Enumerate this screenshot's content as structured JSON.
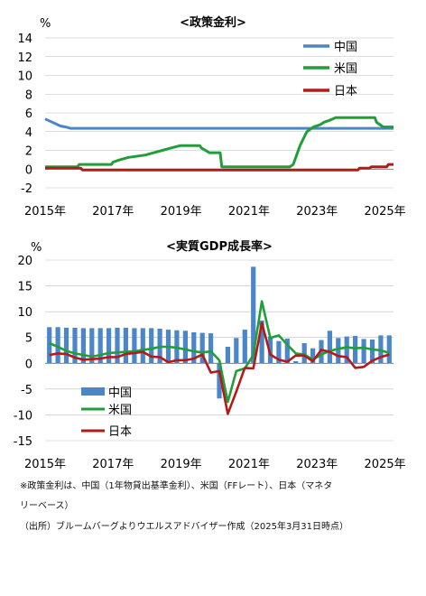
{
  "colors": {
    "china": "#4a86c8",
    "us": "#1f9e3a",
    "japan": "#b31b1b",
    "grid": "#bdbdbd"
  },
  "chart_data": [
    {
      "type": "line",
      "title": "<政策金利>",
      "ylabel": "%",
      "ylim": [
        -2,
        14
      ],
      "yticks": [
        "14",
        "12",
        "10",
        "8",
        "6",
        "4",
        "2",
        "0",
        "-2"
      ],
      "yticks_values": [
        14,
        12,
        10,
        8,
        6,
        4,
        2,
        0,
        -2
      ],
      "xticks": [
        "2015年",
        "2017年",
        "2019年",
        "2021年",
        "2023年",
        "2025年"
      ],
      "xticks_values": [
        2015,
        2017,
        2019,
        2021,
        2023,
        2025
      ],
      "legend": {
        "position": "top-right"
      },
      "series": [
        {
          "name": "中国",
          "key": "china",
          "points": [
            [
              2015.0,
              5.35
            ],
            [
              2015.15,
              5.1
            ],
            [
              2015.3,
              4.85
            ],
            [
              2015.45,
              4.6
            ],
            [
              2015.6,
              4.5
            ],
            [
              2015.75,
              4.35
            ],
            [
              2016.0,
              4.35
            ],
            [
              2025.25,
              4.35
            ]
          ]
        },
        {
          "name": "米国",
          "key": "us",
          "points": [
            [
              2015.0,
              0.25
            ],
            [
              2015.95,
              0.25
            ],
            [
              2016.0,
              0.5
            ],
            [
              2016.95,
              0.5
            ],
            [
              2017.0,
              0.75
            ],
            [
              2017.2,
              1.0
            ],
            [
              2017.45,
              1.25
            ],
            [
              2017.95,
              1.5
            ],
            [
              2018.2,
              1.75
            ],
            [
              2018.45,
              2.0
            ],
            [
              2018.7,
              2.25
            ],
            [
              2018.97,
              2.5
            ],
            [
              2019.55,
              2.5
            ],
            [
              2019.6,
              2.25
            ],
            [
              2019.72,
              2.0
            ],
            [
              2019.83,
              1.75
            ],
            [
              2020.15,
              1.75
            ],
            [
              2020.2,
              0.25
            ],
            [
              2022.2,
              0.25
            ],
            [
              2022.3,
              0.5
            ],
            [
              2022.4,
              1.5
            ],
            [
              2022.5,
              2.5
            ],
            [
              2022.6,
              3.25
            ],
            [
              2022.7,
              4.0
            ],
            [
              2022.9,
              4.5
            ],
            [
              2023.1,
              4.75
            ],
            [
              2023.2,
              5.0
            ],
            [
              2023.4,
              5.25
            ],
            [
              2023.55,
              5.5
            ],
            [
              2024.7,
              5.5
            ],
            [
              2024.75,
              5.0
            ],
            [
              2024.85,
              4.75
            ],
            [
              2024.95,
              4.5
            ],
            [
              2025.25,
              4.5
            ]
          ]
        },
        {
          "name": "日本",
          "key": "japan",
          "points": [
            [
              2015.0,
              0.1
            ],
            [
              2016.05,
              0.1
            ],
            [
              2016.1,
              -0.1
            ],
            [
              2024.2,
              -0.1
            ],
            [
              2024.25,
              0.1
            ],
            [
              2024.55,
              0.1
            ],
            [
              2024.6,
              0.25
            ],
            [
              2025.05,
              0.25
            ],
            [
              2025.1,
              0.5
            ],
            [
              2025.25,
              0.5
            ]
          ]
        }
      ]
    },
    {
      "type": "bar+line",
      "title": "<実質GDP成長率>",
      "ylabel": "%",
      "ylim": [
        -15,
        20
      ],
      "yticks": [
        "20",
        "15",
        "10",
        "5",
        "0",
        "-5",
        "-10",
        "-15"
      ],
      "yticks_values": [
        20,
        15,
        10,
        5,
        0,
        -5,
        -10,
        -15
      ],
      "xticks": [
        "2015年",
        "2017年",
        "2019年",
        "2021年",
        "2023年",
        "2025年"
      ],
      "xticks_values": [
        2015,
        2017,
        2019,
        2021,
        2023,
        2025
      ],
      "legend": {
        "position": "bottom-left"
      },
      "x": [
        "2015Q1",
        "2015Q2",
        "2015Q3",
        "2015Q4",
        "2016Q1",
        "2016Q2",
        "2016Q3",
        "2016Q4",
        "2017Q1",
        "2017Q2",
        "2017Q3",
        "2017Q4",
        "2018Q1",
        "2018Q2",
        "2018Q3",
        "2018Q4",
        "2019Q1",
        "2019Q2",
        "2019Q3",
        "2019Q4",
        "2020Q1",
        "2020Q2",
        "2020Q3",
        "2020Q4",
        "2021Q1",
        "2021Q2",
        "2021Q3",
        "2021Q4",
        "2022Q1",
        "2022Q2",
        "2022Q3",
        "2022Q4",
        "2023Q1",
        "2023Q2",
        "2023Q3",
        "2023Q4",
        "2024Q1",
        "2024Q2",
        "2024Q3",
        "2024Q4",
        "2025Q1"
      ],
      "bars": {
        "name": "中国",
        "key": "china",
        "values": [
          7.0,
          7.0,
          6.9,
          6.9,
          6.8,
          6.8,
          6.8,
          6.8,
          6.9,
          6.9,
          6.8,
          6.8,
          6.8,
          6.7,
          6.5,
          6.4,
          6.3,
          6.0,
          5.9,
          5.8,
          -6.8,
          3.2,
          4.9,
          6.5,
          18.7,
          8.3,
          5.2,
          4.3,
          4.8,
          0.4,
          3.9,
          2.9,
          4.5,
          6.3,
          4.9,
          5.2,
          5.3,
          4.7,
          4.6,
          5.4,
          5.4
        ]
      },
      "series": [
        {
          "name": "米国",
          "key": "us",
          "values": [
            3.9,
            3.2,
            2.4,
            1.9,
            1.6,
            1.3,
            1.6,
            2.0,
            2.1,
            2.2,
            2.3,
            2.6,
            2.8,
            3.2,
            3.2,
            3.0,
            2.7,
            2.3,
            2.1,
            2.3,
            0.6,
            -7.5,
            -1.5,
            -1.0,
            1.6,
            12.0,
            4.9,
            5.4,
            3.6,
            1.9,
            1.7,
            0.7,
            1.7,
            2.4,
            2.8,
            3.1,
            2.9,
            3.0,
            2.7,
            2.5,
            2.0
          ]
        },
        {
          "name": "日本",
          "key": "japan",
          "values": [
            1.6,
            1.9,
            1.8,
            1.1,
            0.7,
            0.8,
            0.9,
            1.2,
            1.2,
            1.8,
            2.0,
            2.2,
            1.3,
            1.2,
            0.2,
            0.6,
            0.6,
            0.9,
            1.7,
            -1.8,
            -1.5,
            -9.8,
            -5.5,
            -0.9,
            -1.0,
            7.8,
            1.7,
            0.7,
            0.3,
            1.5,
            1.5,
            0.4,
            2.6,
            2.2,
            1.4,
            1.2,
            -0.9,
            -0.7,
            0.5,
            1.2,
            1.7
          ]
        }
      ]
    }
  ],
  "notes": {
    "line1": "※政策金利は、中国（1年物貸出基準金利）、米国（FFレート）、日本（マネタ",
    "line2": "リーベース）",
    "line3": "（出所）ブルームバーグよりウエルスアドバイザー作成（2025年3月31日時点）"
  }
}
